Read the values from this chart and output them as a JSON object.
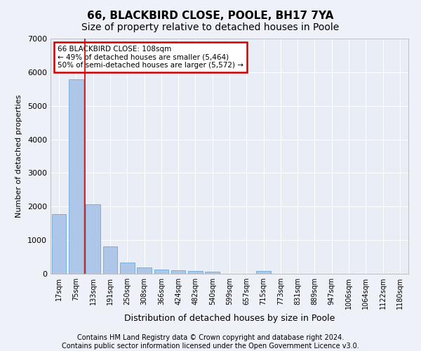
{
  "title": "66, BLACKBIRD CLOSE, POOLE, BH17 7YA",
  "subtitle": "Size of property relative to detached houses in Poole",
  "xlabel": "Distribution of detached houses by size in Poole",
  "ylabel": "Number of detached properties",
  "categories": [
    "17sqm",
    "75sqm",
    "133sqm",
    "191sqm",
    "250sqm",
    "308sqm",
    "366sqm",
    "424sqm",
    "482sqm",
    "540sqm",
    "599sqm",
    "657sqm",
    "715sqm",
    "773sqm",
    "831sqm",
    "889sqm",
    "947sqm",
    "1006sqm",
    "1064sqm",
    "1122sqm",
    "1180sqm"
  ],
  "values": [
    1780,
    5780,
    2060,
    820,
    340,
    190,
    115,
    105,
    90,
    70,
    0,
    0,
    80,
    0,
    0,
    0,
    0,
    0,
    0,
    0,
    0
  ],
  "bar_color": "#aec6e8",
  "bar_edgecolor": "#5a9fd4",
  "vline_x": 1.5,
  "vline_color": "#cc0000",
  "annotation_line1": "66 BLACKBIRD CLOSE: 108sqm",
  "annotation_line2": "← 49% of detached houses are smaller (5,464)",
  "annotation_line3": "50% of semi-detached houses are larger (5,572) →",
  "annotation_box_color": "#cc0000",
  "ylim": [
    0,
    7000
  ],
  "yticks": [
    0,
    1000,
    2000,
    3000,
    4000,
    5000,
    6000,
    7000
  ],
  "footer_line1": "Contains HM Land Registry data © Crown copyright and database right 2024.",
  "footer_line2": "Contains public sector information licensed under the Open Government Licence v3.0.",
  "background_color": "#eef1f8",
  "plot_bg_color": "#e8edf6",
  "grid_color": "#ffffff",
  "title_fontsize": 11,
  "xlabel_fontsize": 9,
  "ylabel_fontsize": 8,
  "footer_fontsize": 7,
  "tick_fontsize": 7,
  "annot_fontsize": 7.5
}
